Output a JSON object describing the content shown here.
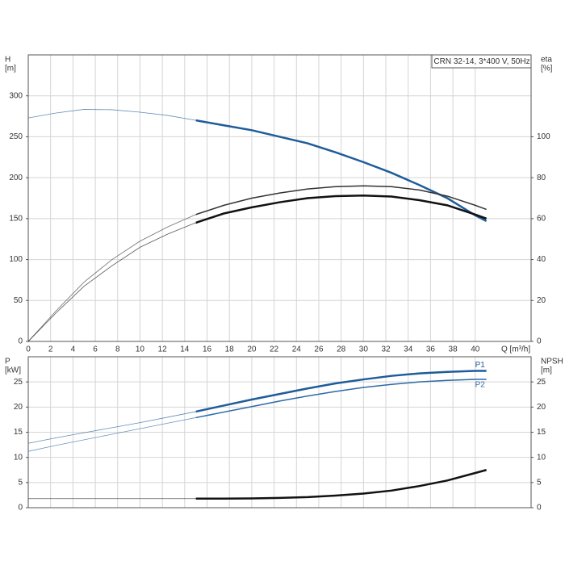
{
  "chart_data": [
    {
      "type": "line",
      "title": "CRN 32-14, 3*400 V, 50Hz",
      "xlabel": "Q [m³/h]",
      "ylabel": [
        "H",
        "[m]"
      ],
      "y2label": [
        "eta",
        "[%]"
      ],
      "x": [
        0,
        2.5,
        5,
        7.5,
        10,
        12.5,
        15,
        17.5,
        20,
        22.5,
        25,
        27.5,
        30,
        32.5,
        35,
        37.5,
        40,
        41
      ],
      "operating_range_start": 15,
      "series": [
        {
          "color": "#1f5c99",
          "linewidth": 2.5,
          "values": [
            273,
            279,
            283.5,
            283,
            280,
            276,
            270,
            264,
            258,
            250,
            242,
            231,
            219,
            206,
            191,
            175,
            154,
            147
          ]
        },
        {
          "color": "#333333",
          "linewidth": 1.5,
          "axis": "y2",
          "values": [
            0,
            15,
            29,
            40,
            49,
            56,
            62,
            66.5,
            70,
            72.5,
            74.5,
            75.6,
            76,
            75.6,
            74,
            71,
            66.5,
            64.5
          ]
        },
        {
          "color": "#111111",
          "linewidth": 2.5,
          "axis": "y2",
          "values": [
            0,
            14,
            27,
            37,
            46,
            52.5,
            58,
            62.5,
            65.5,
            68,
            70,
            71,
            71.3,
            70.8,
            69,
            66.5,
            62,
            60
          ]
        }
      ],
      "xlim": [
        0,
        45
      ],
      "xticks": [
        0,
        2,
        4,
        6,
        8,
        10,
        12,
        14,
        16,
        18,
        20,
        22,
        24,
        26,
        28,
        30,
        32,
        34,
        36,
        38,
        40
      ],
      "ylim": [
        0,
        350
      ],
      "yticks": [
        0,
        50,
        100,
        150,
        200,
        250,
        300
      ],
      "y2lim": [
        0,
        140
      ],
      "y2ticks": [
        0,
        20,
        40,
        60,
        80,
        100
      ],
      "grid": true
    },
    {
      "type": "line",
      "ylabel": [
        "P",
        "[kW]"
      ],
      "y2label": [
        "NPSH",
        "[m]"
      ],
      "x": [
        0,
        2.5,
        5,
        7.5,
        10,
        12.5,
        15,
        17.5,
        20,
        22.5,
        25,
        27.5,
        30,
        32.5,
        35,
        37.5,
        40,
        41
      ],
      "operating_range_start": 15,
      "series": [
        {
          "name": "P1",
          "color": "#1f5c99",
          "linewidth": 2.5,
          "values": [
            12.8,
            13.9,
            14.9,
            15.9,
            16.9,
            18,
            19.1,
            20.3,
            21.5,
            22.6,
            23.7,
            24.7,
            25.5,
            26.2,
            26.7,
            27,
            27.2,
            27.2
          ]
        },
        {
          "name": "P2",
          "color": "#2d6aa8",
          "linewidth": 1.5,
          "values": [
            11.2,
            12.4,
            13.5,
            14.6,
            15.7,
            16.8,
            17.9,
            19,
            20.1,
            21.2,
            22.2,
            23.1,
            23.9,
            24.5,
            25,
            25.3,
            25.5,
            25.5
          ]
        },
        {
          "color": "#111111",
          "linewidth": 2.5,
          "axis": "y2",
          "values": [
            1.8,
            1.8,
            1.8,
            1.8,
            1.8,
            1.8,
            1.8,
            1.8,
            1.85,
            1.95,
            2.1,
            2.4,
            2.8,
            3.4,
            4.3,
            5.4,
            6.9,
            7.5
          ]
        }
      ],
      "xlim": [
        0,
        45
      ],
      "ylim": [
        0,
        30
      ],
      "yticks": [
        0,
        5,
        10,
        15,
        20,
        25
      ],
      "y2lim": [
        0,
        30
      ],
      "y2ticks": [
        0,
        5,
        10,
        15,
        20,
        25
      ],
      "grid": true
    }
  ]
}
